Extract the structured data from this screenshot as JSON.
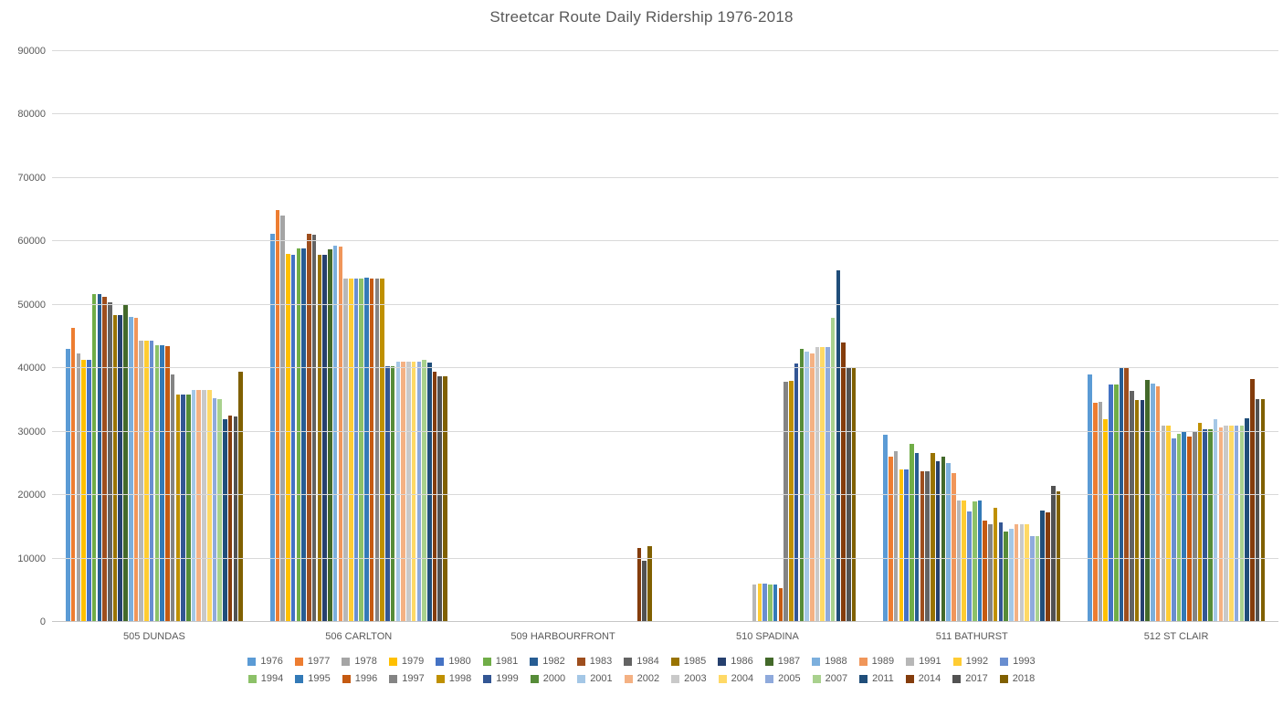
{
  "title": "Streetcar Route Daily Ridership 1976-2018",
  "colors": {
    "background": "#FFFFFF",
    "text": "#595959",
    "gridline": "#D9D9D9",
    "axis_line": "#C6C6C6"
  },
  "chart_data": {
    "type": "bar",
    "title": "Streetcar Route Daily Ridership 1976-2018",
    "xlabel": "",
    "ylabel": "",
    "grid": true,
    "legend_position": "bottom",
    "legend_rows": [
      17,
      17
    ],
    "ylim": [
      0,
      90000
    ],
    "y_step": 10000,
    "y_tick_labels": [
      "0",
      "10000",
      "20000",
      "30000",
      "40000",
      "50000",
      "60000",
      "70000",
      "80000",
      "90000"
    ],
    "categories": [
      "505 DUNDAS",
      "506 CARLTON",
      "509 HARBOURFRONT",
      "510 SPADINA",
      "511 BATHURST",
      "512 ST CLAIR"
    ],
    "series": [
      {
        "name": "1976",
        "color": "#5B9BD5",
        "values": [
          43000,
          61200,
          null,
          null,
          29500,
          39000
        ]
      },
      {
        "name": "1977",
        "color": "#ED7D31",
        "values": [
          46300,
          64900,
          null,
          null,
          26100,
          34500
        ]
      },
      {
        "name": "1978",
        "color": "#A5A5A5",
        "values": [
          42400,
          64100,
          null,
          null,
          26900,
          34700
        ]
      },
      {
        "name": "1979",
        "color": "#FFC000",
        "values": [
          41400,
          58000,
          null,
          null,
          24100,
          31900
        ]
      },
      {
        "name": "1980",
        "color": "#4472C4",
        "values": [
          41400,
          57900,
          null,
          null,
          24100,
          37400
        ]
      },
      {
        "name": "1981",
        "color": "#70AD47",
        "values": [
          51700,
          58900,
          null,
          null,
          28100,
          37400
        ]
      },
      {
        "name": "1982",
        "color": "#275D93",
        "values": [
          51700,
          58900,
          null,
          null,
          26600,
          40100
        ]
      },
      {
        "name": "1983",
        "color": "#9E4E1D",
        "values": [
          51200,
          61200,
          null,
          null,
          23800,
          40000
        ]
      },
      {
        "name": "1984",
        "color": "#636363",
        "values": [
          50400,
          61000,
          null,
          null,
          23800,
          36400
        ]
      },
      {
        "name": "1985",
        "color": "#997300",
        "values": [
          48400,
          57900,
          null,
          null,
          26700,
          35000
        ]
      },
      {
        "name": "1986",
        "color": "#26406E",
        "values": [
          48400,
          57900,
          null,
          null,
          25300,
          35000
        ]
      },
      {
        "name": "1987",
        "color": "#43692A",
        "values": [
          50100,
          58800,
          null,
          null,
          26100,
          38100
        ]
      },
      {
        "name": "1988",
        "color": "#7CAFDD",
        "values": [
          48100,
          59300,
          null,
          null,
          25100,
          37600
        ]
      },
      {
        "name": "1989",
        "color": "#F0965A",
        "values": [
          48000,
          59200,
          null,
          null,
          23500,
          37100
        ]
      },
      {
        "name": "1991",
        "color": "#B7B7B7",
        "values": [
          44300,
          54200,
          null,
          5900,
          19200,
          30900
        ]
      },
      {
        "name": "1992",
        "color": "#FFCC33",
        "values": [
          44300,
          54200,
          null,
          6000,
          19200,
          30900
        ]
      },
      {
        "name": "1993",
        "color": "#698ED0",
        "values": [
          44400,
          54200,
          null,
          6000,
          17400,
          29000
        ]
      },
      {
        "name": "1994",
        "color": "#8CC168",
        "values": [
          43600,
          54200,
          null,
          5900,
          19000,
          29700
        ]
      },
      {
        "name": "1995",
        "color": "#337AB7",
        "values": [
          43600,
          54300,
          null,
          5900,
          19200,
          30000
        ]
      },
      {
        "name": "1996",
        "color": "#C55A11",
        "values": [
          43500,
          54200,
          null,
          5300,
          16000,
          29300
        ]
      },
      {
        "name": "1997",
        "color": "#848484",
        "values": [
          39000,
          54200,
          null,
          37900,
          15400,
          30000
        ]
      },
      {
        "name": "1998",
        "color": "#BF9000",
        "values": [
          35900,
          54200,
          null,
          38000,
          18000,
          31400
        ]
      },
      {
        "name": "1999",
        "color": "#335694",
        "values": [
          35900,
          40300,
          null,
          40700,
          15700,
          30400
        ]
      },
      {
        "name": "2000",
        "color": "#568C38",
        "values": [
          35900,
          40300,
          null,
          43100,
          14300,
          30400
        ]
      },
      {
        "name": "2001",
        "color": "#A4C7E6",
        "values": [
          36600,
          41000,
          null,
          42600,
          14700,
          32000
        ]
      },
      {
        "name": "2002",
        "color": "#F4B183",
        "values": [
          36600,
          41100,
          null,
          42400,
          15400,
          30700
        ]
      },
      {
        "name": "2003",
        "color": "#C9C9C9",
        "values": [
          36600,
          41100,
          null,
          43400,
          15400,
          30900
        ]
      },
      {
        "name": "2004",
        "color": "#FFD966",
        "values": [
          36600,
          41100,
          null,
          43400,
          15400,
          30900
        ]
      },
      {
        "name": "2005",
        "color": "#8FAADC",
        "values": [
          35300,
          41100,
          null,
          43400,
          13600,
          30900
        ]
      },
      {
        "name": "2007",
        "color": "#A9D18E",
        "values": [
          35200,
          41300,
          null,
          48000,
          13600,
          30900
        ]
      },
      {
        "name": "2011",
        "color": "#204E7A",
        "values": [
          31900,
          40900,
          null,
          55400,
          17600,
          32100
        ]
      },
      {
        "name": "2014",
        "color": "#843C0C",
        "values": [
          32500,
          39500,
          11600,
          44000,
          17300,
          38300
        ]
      },
      {
        "name": "2017",
        "color": "#525252",
        "values": [
          32400,
          38700,
          9700,
          40100,
          21400,
          35100
        ]
      },
      {
        "name": "2018",
        "color": "#806000",
        "values": [
          39400,
          38800,
          11900,
          40000,
          20600,
          35100
        ]
      }
    ]
  }
}
